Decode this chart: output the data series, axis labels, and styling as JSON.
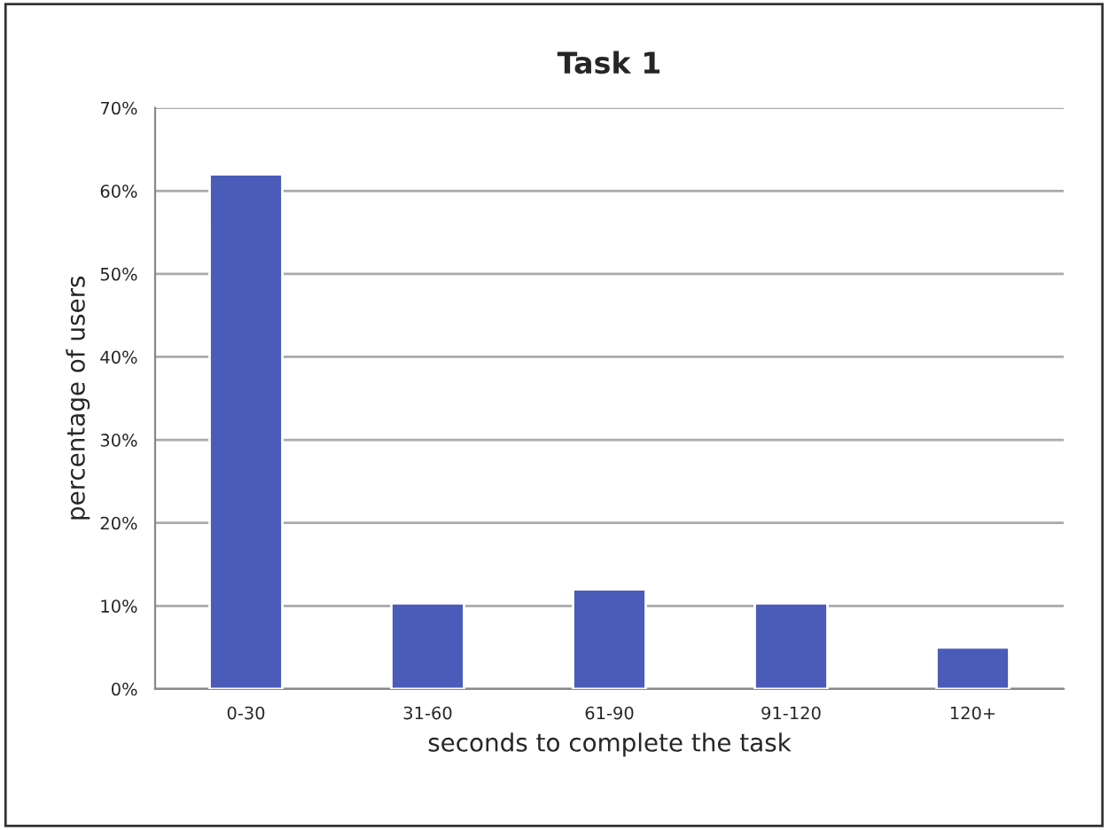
{
  "chart_data": {
    "type": "bar",
    "title": "Task 1",
    "xlabel": "seconds to complete the task",
    "ylabel": "percentage of users",
    "categories": [
      "0-30",
      "31-60",
      "61-90",
      "91-120",
      "120+"
    ],
    "values": [
      62,
      10.3,
      12,
      10.3,
      5
    ],
    "color": "#4a5bb8",
    "ylim": [
      0,
      70
    ],
    "yticks": [
      {
        "value": 0,
        "label": "0%"
      },
      {
        "value": 10,
        "label": "10%"
      },
      {
        "value": 20,
        "label": "20%"
      },
      {
        "value": 30,
        "label": "30%"
      },
      {
        "value": 40,
        "label": "40%"
      },
      {
        "value": 50,
        "label": "50%"
      },
      {
        "value": 60,
        "label": "60%"
      },
      {
        "value": 70,
        "label": "70%"
      }
    ],
    "grid": "y",
    "legend": false
  }
}
